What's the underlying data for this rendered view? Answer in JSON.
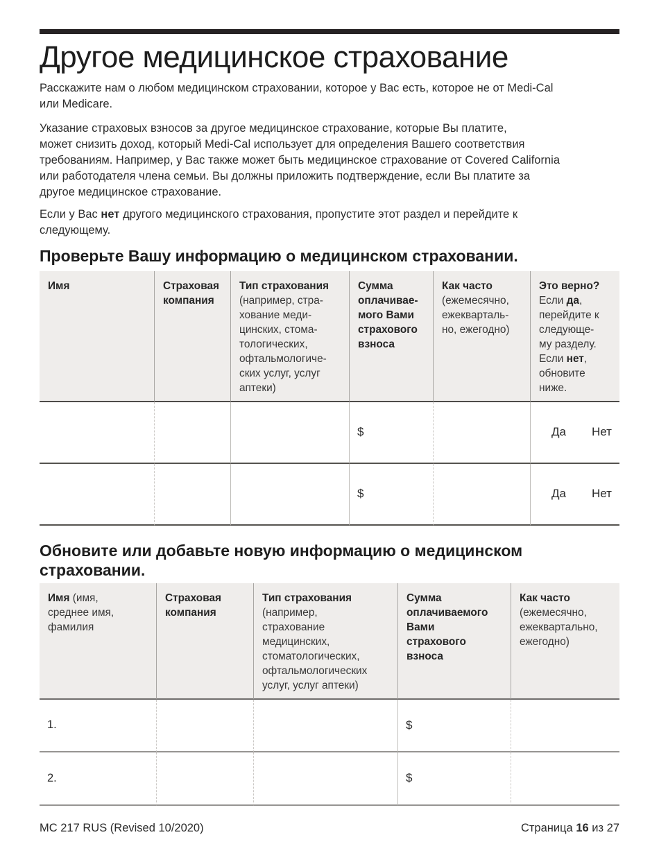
{
  "page": {
    "title": "Другое медицинское страхование",
    "intro_1": "Расскажите нам о любом медицинском страховании, которое у Вас есть, которое не от Medi-Cal\nили Medicare.",
    "intro_2": "Указание страховых взносов за другое медицинское страхование, которые Вы платите,\nможет снизить доход, который Medi-Cal использует для определения Вашего соответствия\nтребованиям. Например, у Вас также может быть медицинское страхование от Covered California\nили работодателя члена семьи. Вы должны приложить подтверждение, если Вы платите за\nдругое медицинское страхование.",
    "intro_3": [
      {
        "t": "Если у Вас ",
        "b": false
      },
      {
        "t": "нет",
        "b": true
      },
      {
        "t": " другого медицинского страхования, пропустите этот раздел и перейдите к\nследующему.",
        "b": false
      }
    ]
  },
  "section_review": {
    "heading": "Проверьте Вашу информацию о медицинском страховании.",
    "table": {
      "headers": [
        [
          {
            "t": "Имя",
            "b": true
          }
        ],
        [
          {
            "t": "Страховая\nкомпания",
            "b": true
          }
        ],
        [
          {
            "t": "Тип страхования\n",
            "b": true
          },
          {
            "t": "(например, стра-\nхование меди-\nцинских, стома-\nтологических,\nофтальмологиче-\nских услуг, услуг\nаптеки)",
            "b": false
          }
        ],
        [
          {
            "t": "Сумма\nоплачивае-\nмого Вами\nстрахового\nвзноса",
            "b": true
          }
        ],
        [
          {
            "t": "Как часто\n",
            "b": true
          },
          {
            "t": "(ежемесячно,\nежекварталь-\nно, ежегодно)",
            "b": false
          }
        ],
        [
          {
            "t": "Это верно?\n",
            "b": true
          },
          {
            "t": "Если ",
            "b": false
          },
          {
            "t": "да",
            "b": true
          },
          {
            "t": ",\nперейдите к\nследующе-\nму разделу.\nЕсли ",
            "b": false
          },
          {
            "t": "нет",
            "b": true
          },
          {
            "t": ",\nобновите\nниже.",
            "b": false
          }
        ]
      ],
      "rows": [
        {
          "dollar": "$",
          "yes": "Да",
          "no": "Нет"
        },
        {
          "dollar": "$",
          "yes": "Да",
          "no": "Нет"
        }
      ]
    }
  },
  "section_update": {
    "heading": "Обновите или добавьте новую информацию о медицинском\nстраховании.",
    "table": {
      "headers": [
        [
          {
            "t": "Имя ",
            "b": true
          },
          {
            "t": "(имя,\nсреднее имя,\nфамилия",
            "b": false
          }
        ],
        [
          {
            "t": "Страховая\nкомпания",
            "b": true
          }
        ],
        [
          {
            "t": "Тип страхования\n",
            "b": true
          },
          {
            "t": "(например,\nстрахование\nмедицинских,\nстоматологических,\nофтальмологических\nуслуг, услуг аптеки)",
            "b": false
          }
        ],
        [
          {
            "t": "Сумма\nоплачиваемого\nВами\nстрахового\nвзноса",
            "b": true
          }
        ],
        [
          {
            "t": "Как часто\n",
            "b": true
          },
          {
            "t": "(ежемесячно,\nежеквартально,\nежегодно)",
            "b": false
          }
        ]
      ],
      "rows": [
        {
          "num": "1.",
          "dollar": "$"
        },
        {
          "num": "2.",
          "dollar": "$"
        }
      ]
    }
  },
  "footer": {
    "form_code": "MC 217 RUS (Revised 10/2020)",
    "page_label": [
      {
        "t": "Страница ",
        "b": false
      },
      {
        "t": "16",
        "b": true
      },
      {
        "t": " из 27",
        "b": false
      }
    ]
  }
}
